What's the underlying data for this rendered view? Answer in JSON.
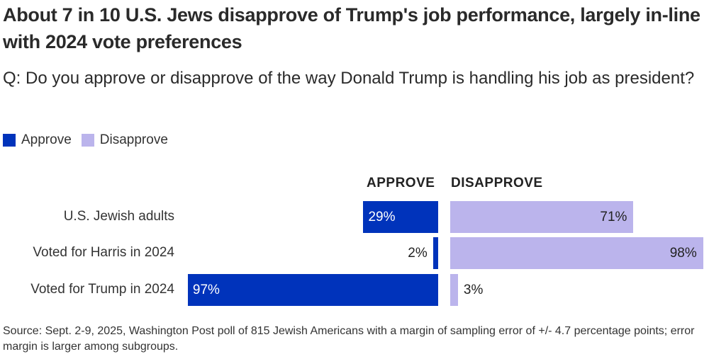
{
  "title": "About 7 in 10 U.S. Jews disapprove of Trump's job performance, largely in-line with 2024 vote preferences",
  "subtitle": "Q: Do you approve or disapprove of the way Donald Trump is handling his job as president?",
  "source": "Source: Sept. 2-9, 2025, Washington Post poll of 815 Jewish Americans with a margin of sampling error of +/- 4.7 percentage points; error margin is larger among subgroups.",
  "colors": {
    "approve": "#0033bb",
    "disapprove": "#bbb4ec"
  },
  "chart_data": {
    "type": "bar",
    "orientation": "horizontal-diverging",
    "title": "About 7 in 10 U.S. Jews disapprove of Trump's job performance, largely in-line with 2024 vote preferences",
    "subtitle": "Q: Do you approve or disapprove of the way Donald Trump is handling his job as president?",
    "legend": {
      "placement": "top-left",
      "entries": [
        "Approve",
        "Disapprove"
      ]
    },
    "column_headers": [
      "APPROVE",
      "DISAPPROVE"
    ],
    "categories": [
      "U.S. Jewish adults",
      "Voted for Harris in 2024",
      "Voted for Trump in 2024"
    ],
    "series": [
      {
        "name": "Approve",
        "values": [
          29,
          2,
          97
        ],
        "labels": [
          "29%",
          "2%",
          "97%"
        ]
      },
      {
        "name": "Disapprove",
        "values": [
          71,
          98,
          3
        ],
        "labels": [
          "71%",
          "98%",
          "3%"
        ]
      }
    ],
    "unit": "%",
    "xlim": [
      0,
      100
    ],
    "grid": false
  }
}
